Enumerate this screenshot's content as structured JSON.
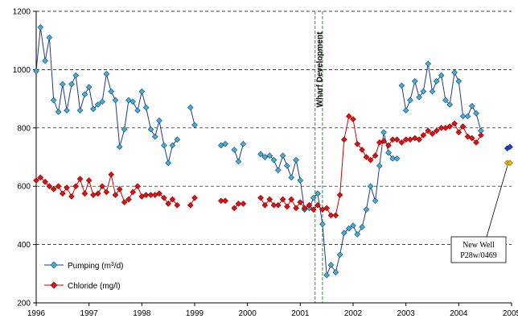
{
  "chart_data": {
    "type": "line",
    "xlim": [
      1996,
      2005
    ],
    "ylim": [
      200,
      1200
    ],
    "x_ticks": [
      "1996",
      "1997",
      "1998",
      "1999",
      "2000",
      "2001",
      "2002",
      "2003",
      "2004",
      "2005"
    ],
    "y_ticks": [
      "200",
      "400",
      "600",
      "800",
      "1000",
      "1200"
    ],
    "grid": "horizontal dashed",
    "legend_placement": "bottom-left",
    "colors": {
      "pumping_line": "#1f3a8a",
      "pumping_marker": "#3eb4c8",
      "chloride_line": "#cc0000",
      "chloride_marker": "#dd1111",
      "new_well_pumping": "#2a3fc0",
      "new_well_chloride": "#e2c000",
      "development_band": "#2e8b2e"
    },
    "series": [
      {
        "name": "Pumping (m3/d)",
        "marker": "diamond",
        "segments": [
          [
            [
              1996.0,
              995
            ],
            [
              1996.08,
              1145
            ],
            [
              1996.17,
              1030
            ],
            [
              1996.25,
              1110
            ],
            [
              1996.33,
              895
            ],
            [
              1996.42,
              855
            ],
            [
              1996.5,
              950
            ],
            [
              1996.58,
              860
            ],
            [
              1996.67,
              950
            ],
            [
              1996.75,
              980
            ],
            [
              1996.83,
              860
            ],
            [
              1996.92,
              915
            ],
            [
              1997.0,
              940
            ],
            [
              1997.08,
              865
            ],
            [
              1997.17,
              880
            ],
            [
              1997.25,
              890
            ],
            [
              1997.33,
              985
            ],
            [
              1997.42,
              925
            ],
            [
              1997.5,
              895
            ],
            [
              1997.58,
              735
            ],
            [
              1997.67,
              795
            ],
            [
              1997.75,
              895
            ],
            [
              1997.83,
              890
            ],
            [
              1997.92,
              860
            ],
            [
              1998.0,
              925
            ],
            [
              1998.08,
              870
            ],
            [
              1998.17,
              795
            ],
            [
              1998.25,
              770
            ],
            [
              1998.33,
              825
            ],
            [
              1998.42,
              740
            ],
            [
              1998.5,
              680
            ],
            [
              1998.58,
              740
            ],
            [
              1998.67,
              760
            ]
          ],
          [
            [
              1998.92,
              870
            ],
            [
              1999.0,
              810
            ]
          ],
          [
            [
              1999.5,
              740
            ],
            [
              1999.58,
              745
            ]
          ],
          [
            [
              1999.75,
              725
            ],
            [
              1999.83,
              685
            ],
            [
              1999.92,
              745
            ]
          ],
          [
            [
              2000.25,
              710
            ],
            [
              2000.33,
              700
            ],
            [
              2000.42,
              705
            ],
            [
              2000.5,
              690
            ],
            [
              2000.58,
              655
            ],
            [
              2000.67,
              705
            ],
            [
              2000.75,
              670
            ],
            [
              2000.83,
              630
            ],
            [
              2000.92,
              690
            ],
            [
              2001.0,
              620
            ],
            [
              2001.08,
              520
            ],
            [
              2001.17,
              525
            ],
            [
              2001.25,
              560
            ],
            [
              2001.33,
              575
            ],
            [
              2001.42,
              470
            ],
            [
              2001.5,
              295
            ],
            [
              2001.58,
              330
            ],
            [
              2001.67,
              305
            ],
            [
              2001.75,
              365
            ],
            [
              2001.83,
              440
            ],
            [
              2001.92,
              455
            ],
            [
              2002.0,
              465
            ],
            [
              2002.08,
              435
            ],
            [
              2002.17,
              460
            ],
            [
              2002.25,
              520
            ],
            [
              2002.33,
              600
            ],
            [
              2002.42,
              550
            ],
            [
              2002.5,
              670
            ],
            [
              2002.58,
              785
            ],
            [
              2002.67,
              715
            ],
            [
              2002.75,
              695
            ],
            [
              2002.83,
              695
            ]
          ],
          [
            [
              2002.92,
              945
            ],
            [
              2003.0,
              860
            ],
            [
              2003.08,
              895
            ],
            [
              2003.17,
              960
            ],
            [
              2003.25,
              905
            ],
            [
              2003.33,
              925
            ],
            [
              2003.42,
              1020
            ],
            [
              2003.5,
              925
            ],
            [
              2003.58,
              960
            ],
            [
              2003.67,
              980
            ],
            [
              2003.75,
              895
            ],
            [
              2003.83,
              880
            ],
            [
              2003.92,
              990
            ],
            [
              2004.0,
              960
            ],
            [
              2004.08,
              840
            ],
            [
              2004.17,
              840
            ],
            [
              2004.25,
              875
            ],
            [
              2004.33,
              850
            ],
            [
              2004.42,
              790
            ]
          ]
        ]
      },
      {
        "name": "Chloride (mg/l)",
        "marker": "diamond",
        "segments": [
          [
            [
              1996.0,
              620
            ],
            [
              1996.08,
              630
            ],
            [
              1996.17,
              615
            ],
            [
              1996.25,
              600
            ],
            [
              1996.33,
              590
            ],
            [
              1996.42,
              600
            ],
            [
              1996.5,
              575
            ],
            [
              1996.58,
              595
            ],
            [
              1996.67,
              565
            ],
            [
              1996.75,
              600
            ],
            [
              1996.83,
              625
            ],
            [
              1996.92,
              575
            ],
            [
              1997.0,
              620
            ],
            [
              1997.08,
              570
            ],
            [
              1997.17,
              575
            ],
            [
              1997.25,
              600
            ],
            [
              1997.33,
              580
            ],
            [
              1997.42,
              640
            ],
            [
              1997.5,
              570
            ],
            [
              1997.58,
              590
            ],
            [
              1997.67,
              545
            ],
            [
              1997.75,
              555
            ],
            [
              1997.83,
              580
            ],
            [
              1997.92,
              600
            ],
            [
              1998.0,
              565
            ],
            [
              1998.08,
              570
            ],
            [
              1998.17,
              570
            ],
            [
              1998.25,
              570
            ],
            [
              1998.33,
              575
            ],
            [
              1998.42,
              560
            ],
            [
              1998.5,
              540
            ],
            [
              1998.58,
              555
            ],
            [
              1998.67,
              535
            ]
          ],
          [
            [
              1998.92,
              535
            ],
            [
              1999.0,
              560
            ]
          ],
          [
            [
              1999.5,
              550
            ],
            [
              1999.58,
              550
            ]
          ],
          [
            [
              1999.75,
              525
            ],
            [
              1999.83,
              540
            ],
            [
              1999.92,
              540
            ]
          ],
          [
            [
              2000.25,
              560
            ],
            [
              2000.33,
              535
            ],
            [
              2000.42,
              555
            ],
            [
              2000.5,
              535
            ],
            [
              2000.58,
              535
            ],
            [
              2000.67,
              555
            ],
            [
              2000.75,
              530
            ],
            [
              2000.83,
              555
            ],
            [
              2000.92,
              525
            ],
            [
              2001.0,
              545
            ],
            [
              2001.08,
              525
            ],
            [
              2001.17,
              535
            ],
            [
              2001.25,
              520
            ],
            [
              2001.33,
              535
            ],
            [
              2001.42,
              520
            ],
            [
              2001.5,
              525
            ],
            [
              2001.58,
              500
            ],
            [
              2001.67,
              500
            ],
            [
              2001.75,
              570
            ],
            [
              2001.83,
              760
            ],
            [
              2001.92,
              840
            ],
            [
              2002.0,
              830
            ],
            [
              2002.08,
              745
            ],
            [
              2002.17,
              725
            ],
            [
              2002.25,
              700
            ],
            [
              2002.33,
              690
            ],
            [
              2002.42,
              705
            ],
            [
              2002.5,
              750
            ],
            [
              2002.58,
              755
            ],
            [
              2002.67,
              740
            ],
            [
              2002.75,
              760
            ],
            [
              2002.83,
              760
            ],
            [
              2002.92,
              750
            ],
            [
              2003.0,
              760
            ],
            [
              2003.08,
              760
            ],
            [
              2003.17,
              765
            ],
            [
              2003.25,
              760
            ],
            [
              2003.33,
              775
            ],
            [
              2003.42,
              790
            ],
            [
              2003.5,
              780
            ],
            [
              2003.58,
              790
            ],
            [
              2003.67,
              800
            ],
            [
              2003.75,
              800
            ],
            [
              2003.83,
              805
            ],
            [
              2003.92,
              815
            ],
            [
              2004.0,
              785
            ],
            [
              2004.08,
              805
            ],
            [
              2004.17,
              770
            ],
            [
              2004.25,
              765
            ],
            [
              2004.33,
              750
            ],
            [
              2004.42,
              775
            ]
          ]
        ]
      }
    ],
    "new_well": {
      "pumping": [
        [
          2004.92,
          730
        ],
        [
          2004.97,
          735
        ]
      ],
      "chloride": [
        [
          2004.92,
          680
        ],
        [
          2004.97,
          680
        ]
      ]
    },
    "development_band": [
      2001.28,
      2001.42
    ]
  },
  "annotations": {
    "wharf_development": "Wharf Development",
    "new_well_line1": "New Well",
    "new_well_line2": "P28w/0469"
  },
  "legend": {
    "pumping_label": "Pumping (m",
    "pumping_sup": "3",
    "pumping_suffix": "/d)",
    "chloride_label": "Chloride (mg/l)"
  }
}
